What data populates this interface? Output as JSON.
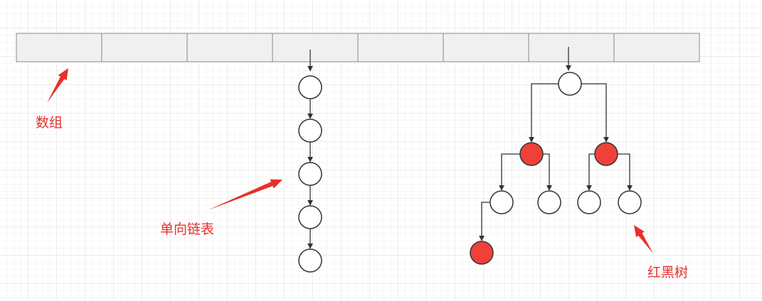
{
  "labels": {
    "array": "数组",
    "linked_list": "单向链表",
    "red_black_tree": "红黑树"
  },
  "array": {
    "cell_count": 8
  },
  "linked_list": {
    "node_count": 5
  },
  "red_black_tree": {
    "nodes": [
      {
        "id": "root",
        "color": "white"
      },
      {
        "id": "left",
        "color": "red"
      },
      {
        "id": "right",
        "color": "red"
      },
      {
        "id": "left-left",
        "color": "white"
      },
      {
        "id": "left-right",
        "color": "white"
      },
      {
        "id": "right-left",
        "color": "white"
      },
      {
        "id": "right-right",
        "color": "white"
      },
      {
        "id": "left-left-left",
        "color": "red"
      }
    ],
    "edges": [
      [
        "root",
        "left"
      ],
      [
        "root",
        "right"
      ],
      [
        "left",
        "left-left"
      ],
      [
        "left",
        "left-right"
      ],
      [
        "right",
        "right-left"
      ],
      [
        "right",
        "right-right"
      ],
      [
        "left-left",
        "left-left-left"
      ]
    ]
  },
  "colors": {
    "red_node": "#f0403a",
    "white_node": "#ffffff",
    "stroke": "#333333",
    "cell_fill": "#f0f0f0",
    "annotation": "#e8302a"
  }
}
